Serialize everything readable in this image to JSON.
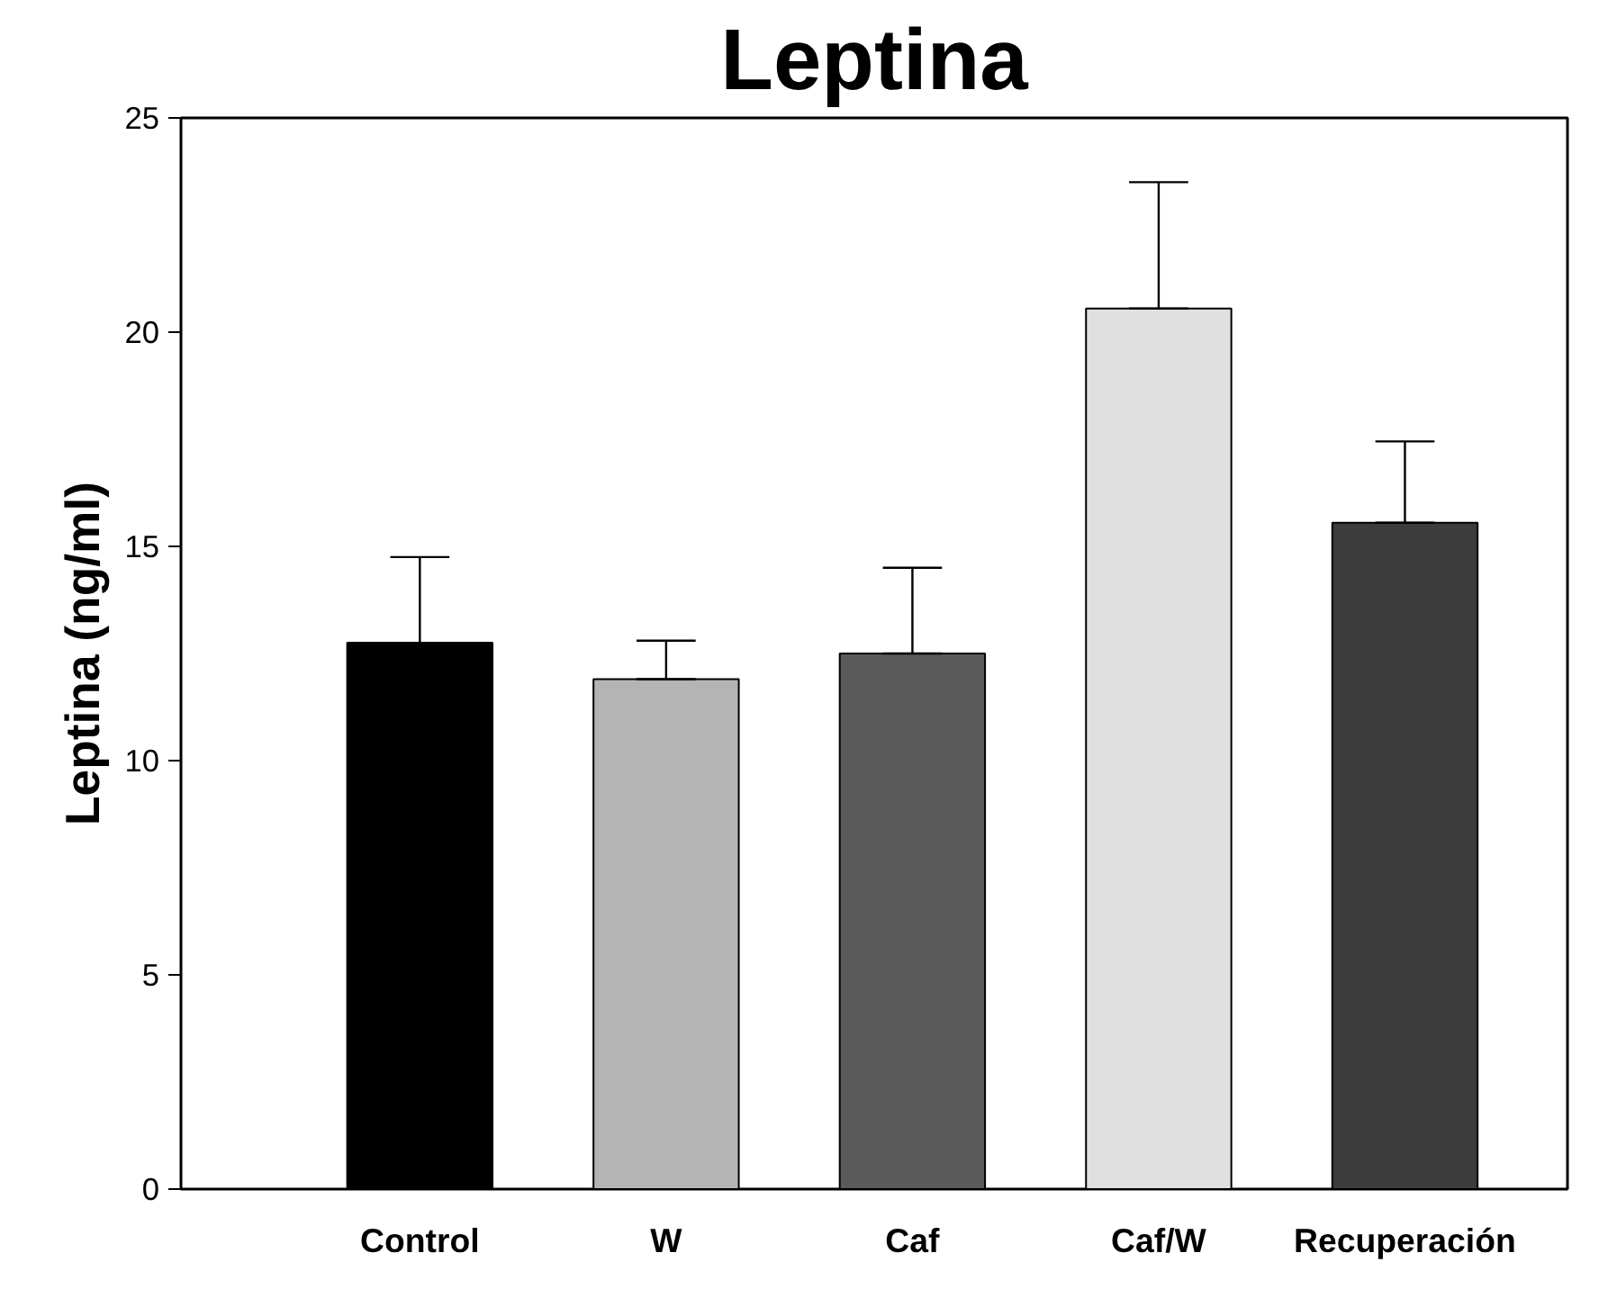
{
  "chart_data": {
    "type": "bar",
    "title": "Leptina",
    "ylabel": "Leptina (ng/ml)",
    "categories": [
      "Control",
      "W",
      "Caf",
      "Caf/W",
      "Recuperación"
    ],
    "values": [
      12.75,
      11.9,
      12.5,
      20.55,
      15.55
    ],
    "colors": [
      "#000000",
      "#b4b4b4",
      "#5a5a5a",
      "#e0e0e0",
      "#3c3c3c"
    ],
    "errors": [
      [
        12.75,
        14.75
      ],
      [
        11.9,
        12.8
      ],
      [
        12.5,
        14.5
      ],
      [
        20.55,
        23.5
      ],
      [
        15.55,
        17.45
      ]
    ],
    "ylim": [
      0,
      25
    ],
    "yticks": [
      0,
      5,
      10,
      15,
      20,
      25
    ],
    "grid": false
  }
}
